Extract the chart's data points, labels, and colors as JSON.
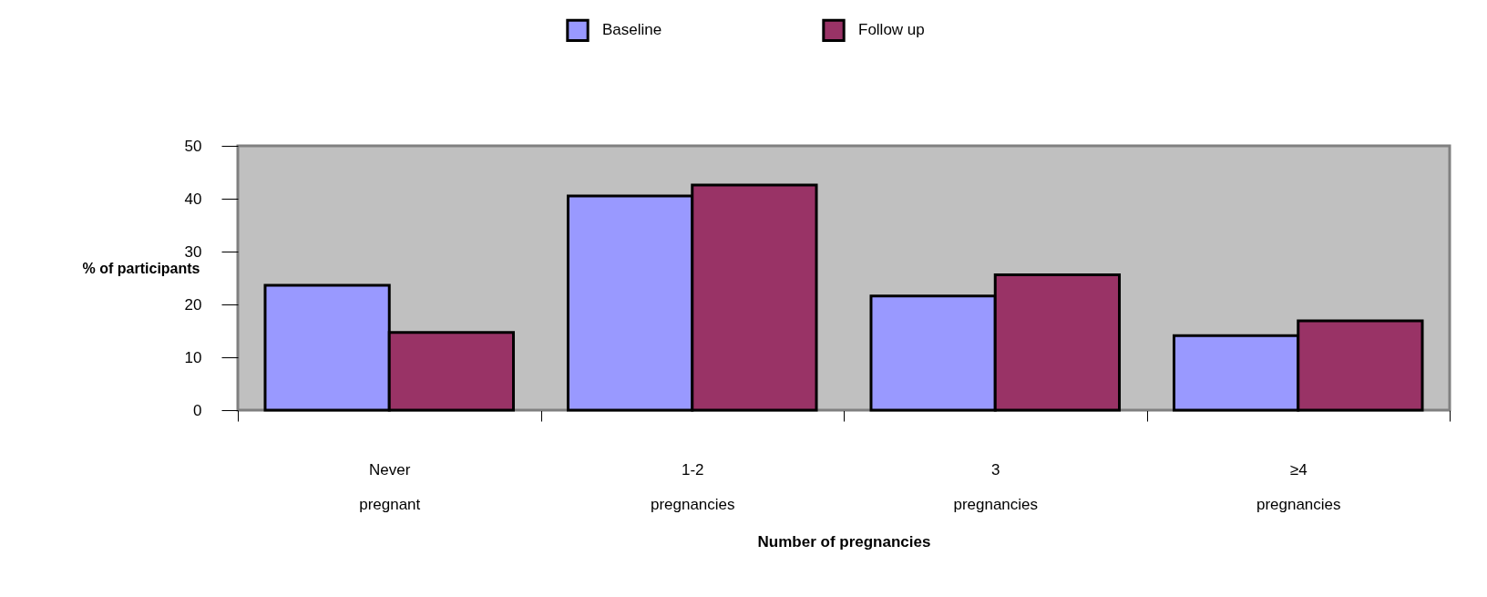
{
  "chart_data": {
    "type": "bar",
    "xlabel": "Number of pregnancies",
    "ylabel": "% of participants",
    "categories": [
      "Never\npregnant",
      "1-2\npregnancies",
      "3\npregnancies",
      "≥4\npregnancies"
    ],
    "series": [
      {
        "name": "Baseline",
        "color": "#9999ff",
        "values": [
          23.6,
          40.5,
          21.6,
          14.1
        ]
      },
      {
        "name": "Follow up",
        "color": "#993366",
        "values": [
          14.7,
          42.6,
          25.6,
          16.9
        ]
      }
    ],
    "ylim": [
      0,
      50
    ],
    "yticks": [
      0,
      10,
      20,
      30,
      40,
      50
    ],
    "grid": false,
    "legend": "top"
  }
}
